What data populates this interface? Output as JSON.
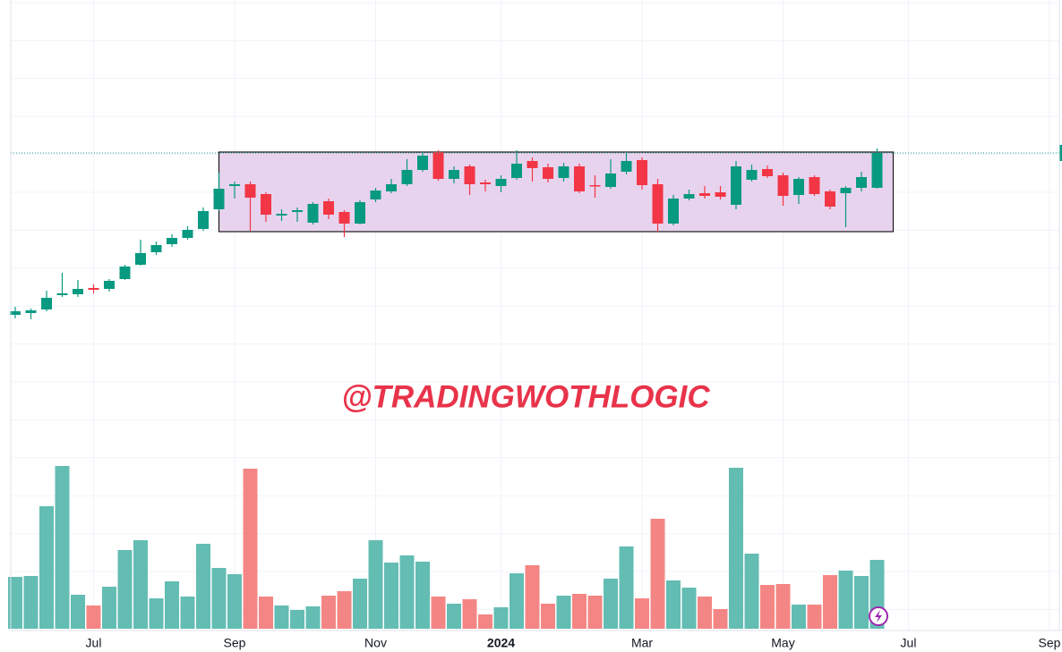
{
  "chart_data": {
    "type": "candlestick",
    "watermark": "@TRADINGWOTHLOGIC",
    "categories": [
      null,
      null,
      null,
      null,
      null,
      "Jul",
      null,
      null,
      null,
      null,
      null,
      null,
      null,
      null,
      "Sep",
      null,
      null,
      null,
      null,
      null,
      null,
      null,
      null,
      "Nov",
      null,
      null,
      null,
      null,
      null,
      null,
      null,
      "2024",
      null,
      null,
      null,
      null,
      null,
      null,
      null,
      null,
      "Mar",
      null,
      null,
      null,
      null,
      null,
      null,
      null,
      null,
      "May",
      null,
      null,
      null,
      null,
      null,
      null,
      null,
      "Jul",
      null,
      null,
      null,
      null,
      null,
      null,
      null,
      null,
      "Sep"
    ],
    "open": [
      148,
      150,
      154,
      170,
      171,
      178,
      177,
      188,
      204,
      218,
      227,
      234,
      244,
      266,
      292,
      294,
      283,
      259,
      263,
      251,
      275,
      263,
      250,
      277,
      286,
      294,
      310,
      330,
      300,
      314,
      296,
      292,
      301,
      320,
      313,
      301,
      314,
      293,
      291,
      308,
      321,
      294,
      250,
      278,
      284,
      285,
      271,
      299,
      311,
      304,
      282,
      302,
      286,
      284,
      290,
      290,
      null,
      null,
      null,
      null,
      null,
      null,
      null,
      null,
      null,
      null,
      null
    ],
    "high": [
      157,
      155,
      175,
      195,
      187,
      182,
      188,
      204,
      232,
      230,
      238,
      247,
      268,
      307,
      297,
      297,
      285,
      266,
      268,
      274,
      278,
      265,
      276,
      290,
      300,
      322,
      330,
      332,
      314,
      316,
      299,
      304,
      332,
      324,
      317,
      318,
      317,
      304,
      322,
      330,
      324,
      300,
      282,
      288,
      292,
      292,
      320,
      316,
      315,
      307,
      302,
      304,
      288,
      292,
      308,
      334,
      null,
      null,
      null,
      null,
      null,
      null,
      null,
      null,
      null,
      null,
      null
    ],
    "low": [
      144,
      143,
      152,
      168,
      168,
      172,
      174,
      187,
      203,
      215,
      224,
      232,
      242,
      264,
      278,
      242,
      252,
      253,
      252,
      249,
      255,
      235,
      249,
      274,
      284,
      292,
      308,
      298,
      295,
      282,
      286,
      285,
      299,
      297,
      296,
      297,
      284,
      279,
      289,
      305,
      288,
      241,
      248,
      276,
      278,
      277,
      266,
      297,
      301,
      270,
      272,
      281,
      266,
      246,
      286,
      289,
      null,
      null,
      null,
      null,
      null,
      null,
      null,
      null,
      null,
      null,
      null
    ],
    "close": [
      152,
      153,
      167,
      172,
      177,
      176,
      186,
      202,
      217,
      226,
      234,
      243,
      264,
      289,
      294,
      279,
      260,
      261,
      265,
      272,
      260,
      250,
      274,
      287,
      294,
      310,
      326,
      300,
      310,
      294,
      294,
      300,
      317,
      312,
      300,
      314,
      286,
      292,
      306,
      320,
      293,
      250,
      278,
      283,
      281,
      280,
      314,
      310,
      303,
      281,
      300,
      283,
      269,
      290,
      302,
      329,
      null,
      null,
      null,
      null,
      null,
      null,
      null,
      null,
      null,
      null,
      null
    ],
    "volume": [
      58,
      59,
      137,
      182,
      38,
      26,
      47,
      88,
      99,
      34,
      53,
      36,
      95,
      68,
      61,
      179,
      36,
      26,
      21,
      25,
      37,
      42,
      56,
      99,
      74,
      82,
      75,
      36,
      28,
      33,
      16,
      24,
      62,
      71,
      28,
      37,
      39,
      37,
      56,
      92,
      34,
      123,
      54,
      46,
      36,
      22,
      180,
      84,
      49,
      50,
      27,
      27,
      60,
      65,
      59,
      77,
      null,
      null,
      null,
      null,
      null,
      null,
      null,
      null,
      null,
      null,
      null
    ],
    "ylim": [
      0,
      500
    ],
    "volume_ylim": [
      0,
      200
    ],
    "up_color": "#089981",
    "down_color": "#f23645",
    "volume_up_color": "#63bdb3",
    "volume_down_color": "#f38684",
    "grid": true,
    "range_box": {
      "high": 330,
      "low": 241,
      "color": "#e8d3ee"
    }
  }
}
